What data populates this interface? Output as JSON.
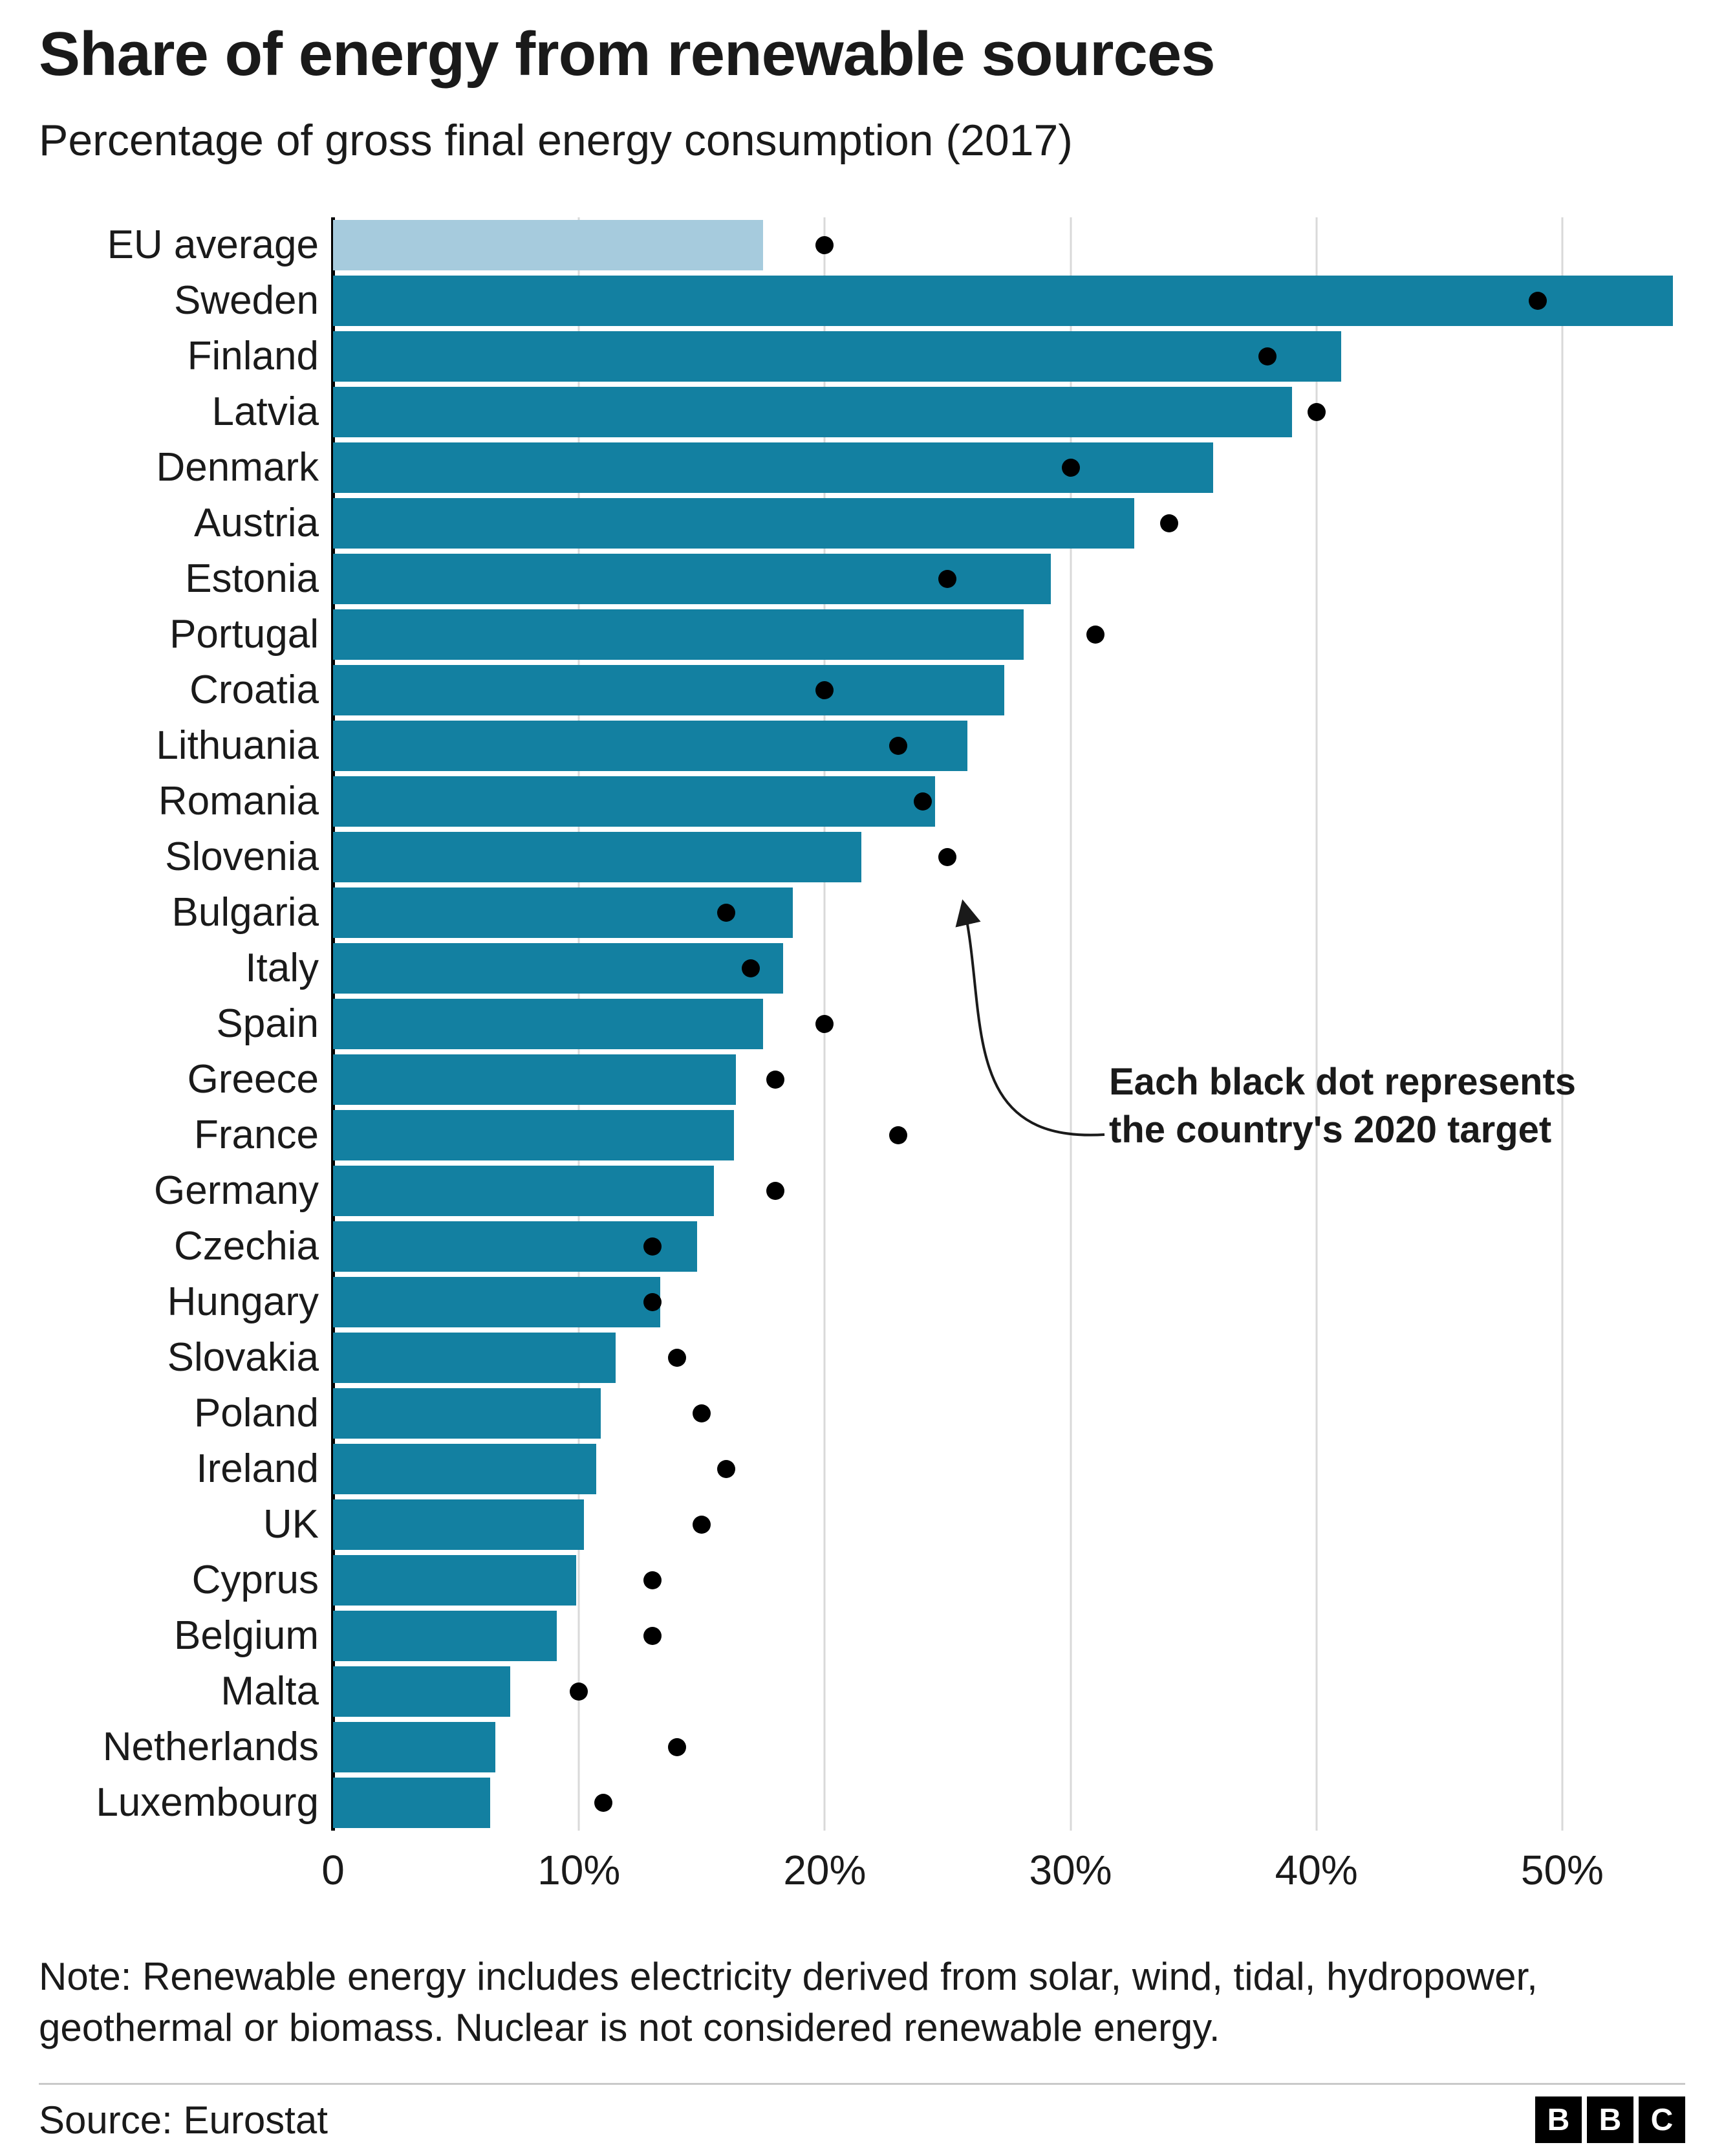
{
  "header": {
    "title": "Share of energy from renewable sources",
    "subtitle": "Percentage of gross final energy consumption (2017)"
  },
  "chart_data": {
    "type": "bar",
    "orientation": "horizontal",
    "title": "Share of energy from renewable sources",
    "subtitle": "Percentage of gross final energy consumption (2017)",
    "xlabel": "",
    "ylabel": "",
    "unit": "%",
    "axis": {
      "max": 55,
      "ticks": [
        0,
        10,
        20,
        30,
        40,
        50
      ],
      "tick_labels": [
        "0",
        "10%",
        "20%",
        "30%",
        "40%",
        "50%"
      ],
      "grid": true
    },
    "categories": [
      "EU average",
      "Sweden",
      "Finland",
      "Latvia",
      "Denmark",
      "Austria",
      "Estonia",
      "Portugal",
      "Croatia",
      "Lithuania",
      "Romania",
      "Slovenia",
      "Bulgaria",
      "Italy",
      "Spain",
      "Greece",
      "France",
      "Germany",
      "Czechia",
      "Hungary",
      "Slovakia",
      "Poland",
      "Ireland",
      "UK",
      "Cyprus",
      "Belgium",
      "Malta",
      "Netherlands",
      "Luxembourg"
    ],
    "series": [
      {
        "name": "Share of renewable energy 2017 (%)",
        "values": [
          17.5,
          54.5,
          41.0,
          39.0,
          35.8,
          32.6,
          29.2,
          28.1,
          27.3,
          25.8,
          24.5,
          21.5,
          18.7,
          18.3,
          17.5,
          16.4,
          16.3,
          15.5,
          14.8,
          13.3,
          11.5,
          10.9,
          10.7,
          10.2,
          9.9,
          9.1,
          7.2,
          6.6,
          6.4
        ]
      },
      {
        "name": "2020 target (black dot, %)",
        "values": [
          20,
          49,
          38,
          40,
          30,
          34,
          25,
          31,
          20,
          23,
          24,
          25,
          16,
          17,
          20,
          18,
          23,
          18,
          13,
          13,
          14,
          15,
          16,
          15,
          13,
          13,
          10,
          14,
          11
        ]
      }
    ],
    "annotation": {
      "line1": "Each black dot represents",
      "line2": "the country's 2020 target",
      "points_to": "Slovenia"
    },
    "colors": {
      "bar": "#1380A1",
      "eu_bar": "#a6cbdd",
      "dot": "#000000",
      "gridline": "#d9d9d9",
      "axis_line": "#000000"
    },
    "legend_position": "none"
  },
  "note": {
    "text": "Note: Renewable energy includes electricity derived from solar, wind, tidal, hydropower, geothermal or biomass. Nuclear is not considered renewable energy."
  },
  "footer": {
    "source": "Source: Eurostat",
    "logo_letters": [
      "B",
      "B",
      "C"
    ]
  }
}
